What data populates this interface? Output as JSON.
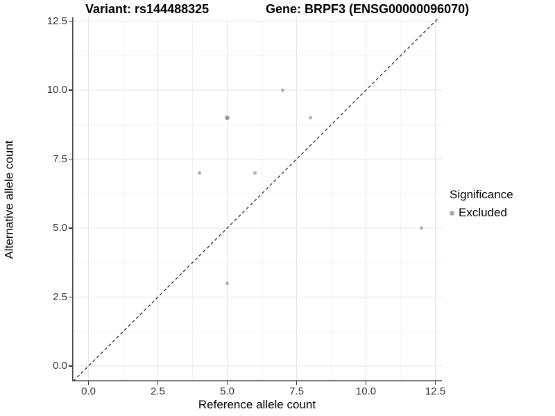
{
  "chart_data": {
    "type": "scatter",
    "title_left": "Variant: rs144488325",
    "title_right": "Gene: BRPF3 (ENSG00000096070)",
    "xlabel": "Reference allele count",
    "ylabel": "Alternative allele count",
    "xlim": [
      -0.6,
      12.75
    ],
    "ylim": [
      -0.6,
      12.65
    ],
    "x_ticks": [
      0.0,
      2.5,
      5.0,
      7.5,
      10.0,
      12.5
    ],
    "y_ticks": [
      0.0,
      2.5,
      5.0,
      7.5,
      10.0,
      12.5
    ],
    "x_tick_labels": [
      "0.0",
      "2.5",
      "5.0",
      "7.5",
      "10.0",
      "12.5"
    ],
    "y_tick_labels": [
      "0.0",
      "2.5",
      "5.0",
      "7.5",
      "10.0",
      "12.5"
    ],
    "grid": {
      "major": true,
      "minor": true
    },
    "legend_title": "Significance",
    "legend_position": "right",
    "identity_line": {
      "slope": 1,
      "intercept": 0,
      "style": "dashed"
    },
    "series": [
      {
        "name": "Excluded",
        "points": [
          {
            "x": 4,
            "y": 7
          },
          {
            "x": 5,
            "y": 3
          },
          {
            "x": 5,
            "y": 9,
            "overplotted": true
          },
          {
            "x": 6,
            "y": 7
          },
          {
            "x": 7,
            "y": 10
          },
          {
            "x": 8,
            "y": 9
          },
          {
            "x": 12,
            "y": 5
          }
        ]
      }
    ]
  },
  "colors": {
    "point": "#b5b5b5",
    "point_overplotted": "#9a9a9a",
    "legend_dot": "#a9a9a9",
    "grid_major": "#e5e5e5",
    "grid_minor": "#f2f2f2",
    "axis_line": "#4a4a4a",
    "identity_line": "#1a1a1a"
  }
}
